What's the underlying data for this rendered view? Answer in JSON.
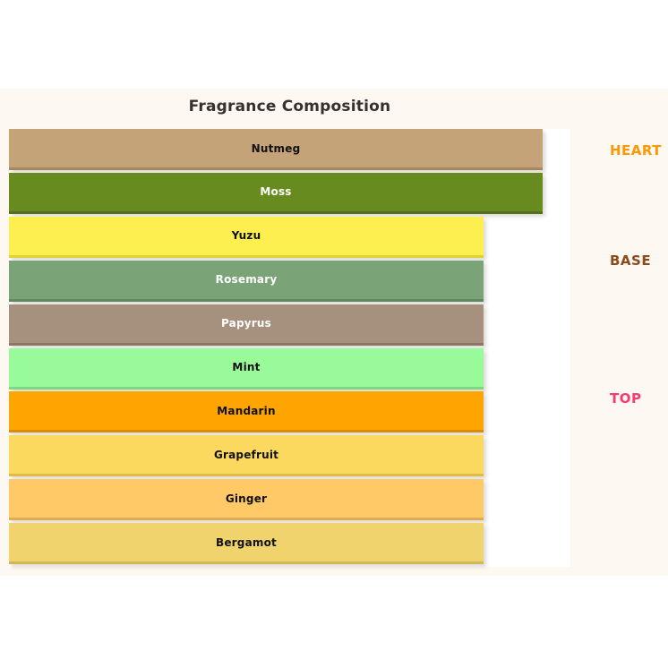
{
  "chart_data": {
    "type": "bar",
    "orientation": "horizontal",
    "title": "Fragrance Composition",
    "title_color": "#38302C",
    "figure_background": "#FDF8F1",
    "plot_background": "#FFFFFF",
    "xlim": [
      0,
      1
    ],
    "grid": false,
    "legend": false,
    "categories": [
      "Nutmeg",
      "Moss",
      "Yuzu",
      "Rosemary",
      "Papyrus",
      "Mint",
      "Mandarin",
      "Grapefruit",
      "Ginger",
      "Bergamot"
    ],
    "values": [
      0.95,
      0.95,
      0.845,
      0.845,
      0.845,
      0.845,
      0.845,
      0.845,
      0.845,
      0.845
    ],
    "bars": [
      {
        "label": "Nutmeg",
        "value": 0.95,
        "color": "#C3A377",
        "edge": "#A5895D",
        "text": "#111111"
      },
      {
        "label": "Moss",
        "value": 0.95,
        "color": "#688B20",
        "edge": "#53701A",
        "text": "#FFFFFF"
      },
      {
        "label": "Yuzu",
        "value": 0.845,
        "color": "#FCEF4F",
        "edge": "#DFD233",
        "text": "#111111"
      },
      {
        "label": "Rosemary",
        "value": 0.845,
        "color": "#7AA378",
        "edge": "#61885F",
        "text": "#FFFFFF"
      },
      {
        "label": "Papyrus",
        "value": 0.845,
        "color": "#A5917D",
        "edge": "#8A7663",
        "text": "#FFFFFF"
      },
      {
        "label": "Mint",
        "value": 0.845,
        "color": "#98FA98",
        "edge": "#7CD97C",
        "text": "#111111"
      },
      {
        "label": "Mandarin",
        "value": 0.845,
        "color": "#FFA502",
        "edge": "#DB8D00",
        "text": "#111111"
      },
      {
        "label": "Grapefruit",
        "value": 0.845,
        "color": "#FBD95F",
        "edge": "#DFBC47",
        "text": "#111111"
      },
      {
        "label": "Ginger",
        "value": 0.845,
        "color": "#FEC966",
        "edge": "#E2AC4C",
        "text": "#111111"
      },
      {
        "label": "Bergamot",
        "value": 0.845,
        "color": "#F1D36D",
        "edge": "#D4B652",
        "text": "#111111"
      }
    ],
    "groups": [
      {
        "label": "HEART",
        "color": "#FF9800",
        "anchor_row": 0.5
      },
      {
        "label": "BASE",
        "color": "#8B4A1C",
        "anchor_row": 3.0
      },
      {
        "label": "TOP",
        "color": "#F93C6E",
        "anchor_row": 6.15
      }
    ]
  }
}
